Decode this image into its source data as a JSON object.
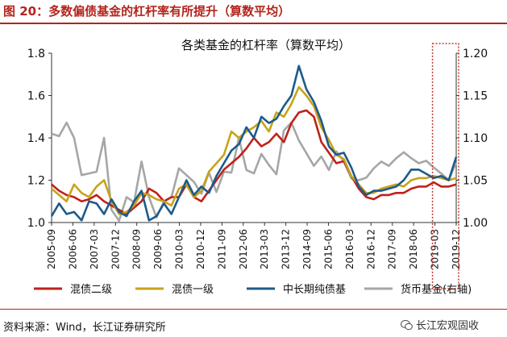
{
  "figure": {
    "label": "图 20：多数偏债基金的杠杆率有所提升（算数平均）",
    "source": "资料来源：Wind，长江证券研究所",
    "watermark": "长江宏观固收",
    "colors": {
      "accent": "#b3241c",
      "highlight_box": "#c0392b"
    }
  },
  "chart_data": {
    "type": "line",
    "title": "各类基金的杠杆率（算数平均）",
    "xlabel": "",
    "ylabel": "",
    "x_tick_labels": [
      "2005-09",
      "2006-06",
      "2007-03",
      "2007-12",
      "2008-09",
      "2009-06",
      "2010-03",
      "2010-12",
      "2011-09",
      "2012-06",
      "2013-03",
      "2013-12",
      "2014-09",
      "2015-06",
      "2016-03",
      "2016-12",
      "2017-09",
      "2018-06",
      "2019-03",
      "2019-12"
    ],
    "ylim": [
      1.0,
      1.8
    ],
    "y_ticks": [
      "1.0",
      "1.2",
      "1.4",
      "1.6",
      "1.8"
    ],
    "y2lim": [
      1.0,
      1.2
    ],
    "y2_ticks": [
      "1.00",
      "1.05",
      "1.10",
      "1.15",
      "1.20"
    ],
    "grid": false,
    "legend_position": "bottom",
    "series": [
      {
        "name": "混债二级",
        "axis": "left",
        "color": "#c0201a",
        "values": [
          1.18,
          1.15,
          1.13,
          1.12,
          1.1,
          1.11,
          1.13,
          1.1,
          1.08,
          1.06,
          1.04,
          1.07,
          1.1,
          1.16,
          1.14,
          1.1,
          1.12,
          1.12,
          1.18,
          1.12,
          1.1,
          1.15,
          1.2,
          1.25,
          1.28,
          1.31,
          1.35,
          1.4,
          1.36,
          1.38,
          1.42,
          1.38,
          1.47,
          1.52,
          1.53,
          1.5,
          1.38,
          1.33,
          1.28,
          1.29,
          1.22,
          1.16,
          1.12,
          1.11,
          1.13,
          1.13,
          1.14,
          1.14,
          1.16,
          1.17,
          1.17,
          1.19,
          1.17,
          1.17,
          1.18
        ]
      },
      {
        "name": "混债一级",
        "axis": "left",
        "color": "#c9a21a",
        "values": [
          1.16,
          1.13,
          1.1,
          1.18,
          1.14,
          1.12,
          1.17,
          1.2,
          1.1,
          1.04,
          1.05,
          1.08,
          1.14,
          1.13,
          1.11,
          1.1,
          1.08,
          1.16,
          1.18,
          1.12,
          1.15,
          1.24,
          1.28,
          1.32,
          1.43,
          1.4,
          1.43,
          1.45,
          1.48,
          1.43,
          1.52,
          1.5,
          1.56,
          1.64,
          1.6,
          1.55,
          1.45,
          1.39,
          1.32,
          1.3,
          1.22,
          1.18,
          1.14,
          1.14,
          1.16,
          1.17,
          1.18,
          1.17,
          1.2,
          1.21,
          1.21,
          1.22,
          1.21,
          1.2,
          1.21
        ]
      },
      {
        "name": "中长期纯债基",
        "axis": "left",
        "color": "#1c5b8a",
        "values": [
          1.03,
          1.09,
          1.04,
          1.05,
          1.01,
          1.1,
          1.09,
          1.04,
          1.11,
          1.05,
          1.03,
          1.1,
          1.15,
          1.01,
          1.03,
          1.09,
          1.04,
          1.12,
          1.2,
          1.13,
          1.17,
          1.14,
          1.22,
          1.28,
          1.34,
          1.37,
          1.45,
          1.4,
          1.5,
          1.47,
          1.49,
          1.55,
          1.6,
          1.74,
          1.63,
          1.57,
          1.48,
          1.36,
          1.32,
          1.33,
          1.26,
          1.17,
          1.13,
          1.15,
          1.15,
          1.16,
          1.17,
          1.2,
          1.25,
          1.25,
          1.23,
          1.21,
          1.22,
          1.2,
          1.31
        ]
      },
      {
        "name": "货币基金(右轴)",
        "axis": "right",
        "color": "#a6a6a6",
        "values": [
          1.105,
          1.102,
          1.118,
          1.1,
          1.056,
          1.058,
          1.06,
          1.1,
          1.015,
          1.002,
          1.03,
          1.024,
          1.072,
          1.03,
          1.006,
          1.025,
          1.03,
          1.064,
          1.056,
          1.048,
          1.034,
          1.059,
          1.036,
          1.06,
          1.059,
          1.1,
          1.062,
          1.058,
          1.081,
          1.068,
          1.057,
          1.109,
          1.118,
          1.097,
          1.082,
          1.067,
          1.078,
          1.062,
          1.084,
          1.072,
          1.052,
          1.05,
          1.053,
          1.064,
          1.072,
          1.067,
          1.076,
          1.083,
          1.076,
          1.07,
          1.073,
          1.065,
          1.058,
          1.05,
          1.071
        ]
      }
    ],
    "annotations": [
      {
        "type": "dotted-box",
        "covers_x_range": [
          "2019-03",
          "2019-12"
        ]
      }
    ]
  }
}
